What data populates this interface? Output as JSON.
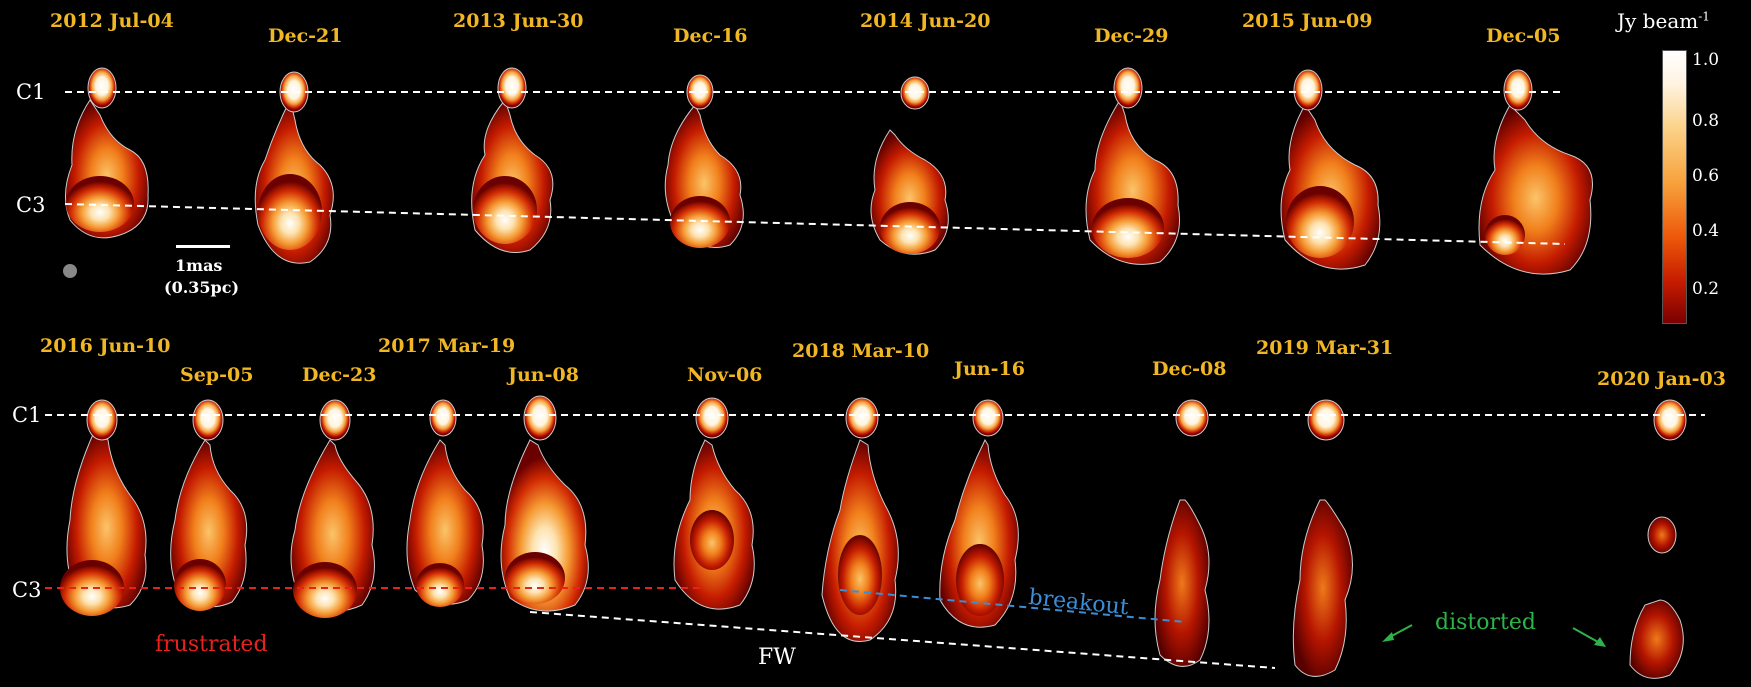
{
  "colorbar": {
    "unit_text": "Jy beam",
    "unit_exp": "-1",
    "ticks": [
      "1.0",
      "0.8",
      "0.6",
      "0.4",
      "0.2"
    ]
  },
  "scale_bar": {
    "label1": "1mas",
    "label2": "(0.35pc)"
  },
  "components": {
    "c1": "C1",
    "c3": "C3"
  },
  "row1_epochs": [
    "2012 Jul-04",
    "Dec-21",
    "2013 Jun-30",
    "Dec-16",
    "2014 Jun-20",
    "Dec-29",
    "2015 Jun-09",
    "Dec-05"
  ],
  "row2_epochs": [
    "2016 Jun-10",
    "Sep-05",
    "Dec-23",
    "2017 Mar-19",
    "Jun-08",
    "Nov-06",
    "2018 Mar-10",
    "Jun-16",
    "Dec-08",
    "2019 Mar-31",
    "2020 Jan-03"
  ],
  "annotations": {
    "frustrated": "frustrated",
    "breakout": "breakout",
    "fw": "FW",
    "distorted": "distorted"
  },
  "colors": {
    "epoch_label": "#f0b623",
    "frustrated": "#e8211d",
    "breakout": "#3b8ed6",
    "distorted": "#2db34a",
    "guide_lines": "#ffffff"
  }
}
